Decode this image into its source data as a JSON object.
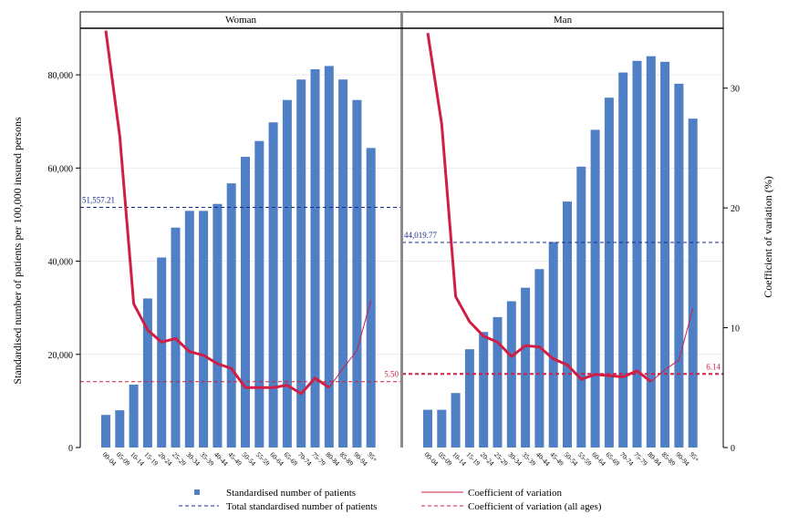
{
  "chart_data": {
    "type": "bar",
    "ylabel": "Standardised number of patients per 100,000 insured persons",
    "y2label": "Coefficient of variation (%)",
    "ylim": [
      0,
      90000
    ],
    "y2lim": [
      0,
      35
    ],
    "yticks": [
      "0",
      "20,000",
      "40,000",
      "60,000",
      "80,000"
    ],
    "yticks_values": [
      0,
      20000,
      40000,
      60000,
      80000
    ],
    "y2ticks": [
      "0",
      "10",
      "20",
      "30"
    ],
    "y2ticks_values": [
      0,
      10,
      20,
      30
    ],
    "grid": "horizontal",
    "categories": [
      "00-04",
      "05-09",
      "10-14",
      "15-19",
      "20-24",
      "25-29",
      "30-34",
      "35-39",
      "40-44",
      "45-49",
      "50-54",
      "55-59",
      "60-64",
      "65-69",
      "70-74",
      "75-79",
      "80-84",
      "85-89",
      "90-94",
      "95+"
    ],
    "panels": [
      {
        "title": "Woman",
        "bars": [
          7000,
          8000,
          13500,
          32000,
          40800,
          47200,
          50800,
          50800,
          52300,
          56700,
          62400,
          65800,
          69800,
          74600,
          79000,
          81200,
          81900,
          79000,
          74600,
          64300
        ],
        "cv": [
          34.8,
          26.0,
          12.0,
          9.8,
          8.8,
          9.1,
          8.0,
          7.7,
          7.0,
          6.6,
          5.0,
          5.0,
          5.0,
          5.2,
          4.5,
          5.8,
          5.0,
          6.6,
          8.1,
          12.3
        ],
        "total": 51557.21,
        "total_label": "51,557.21",
        "cv_all": 5.5,
        "cv_all_label": "5.50"
      },
      {
        "title": "Man",
        "bars": [
          8100,
          8100,
          11700,
          21100,
          24800,
          28000,
          31400,
          34300,
          38300,
          44100,
          52800,
          60300,
          68200,
          75100,
          80500,
          83000,
          84000,
          82800,
          78100,
          70600
        ],
        "cv": [
          34.6,
          27.0,
          12.6,
          10.5,
          9.3,
          8.8,
          7.6,
          8.5,
          8.4,
          7.4,
          6.9,
          5.7,
          6.1,
          6.0,
          5.9,
          6.4,
          5.5,
          6.5,
          7.3,
          11.6
        ],
        "total": 44019.77,
        "total_label": "44,019.77",
        "cv_all": 6.14,
        "cv_all_label": "6.14"
      }
    ],
    "legend": {
      "placement": "bottom",
      "items": [
        {
          "name": "Standardised number of patients",
          "kind": "bar-square"
        },
        {
          "name": "Coefficient of variation",
          "kind": "solid-line"
        },
        {
          "name": "Total standardised number of patients",
          "kind": "dash-navy"
        },
        {
          "name": "Coefficient of variation (all ages)",
          "kind": "dash-red"
        }
      ]
    },
    "colors": {
      "bar": "#4f7fc5",
      "cv_line": "#d01e44",
      "total_line": "#1b2b8c",
      "cv_all_line": "#d01e44"
    }
  }
}
